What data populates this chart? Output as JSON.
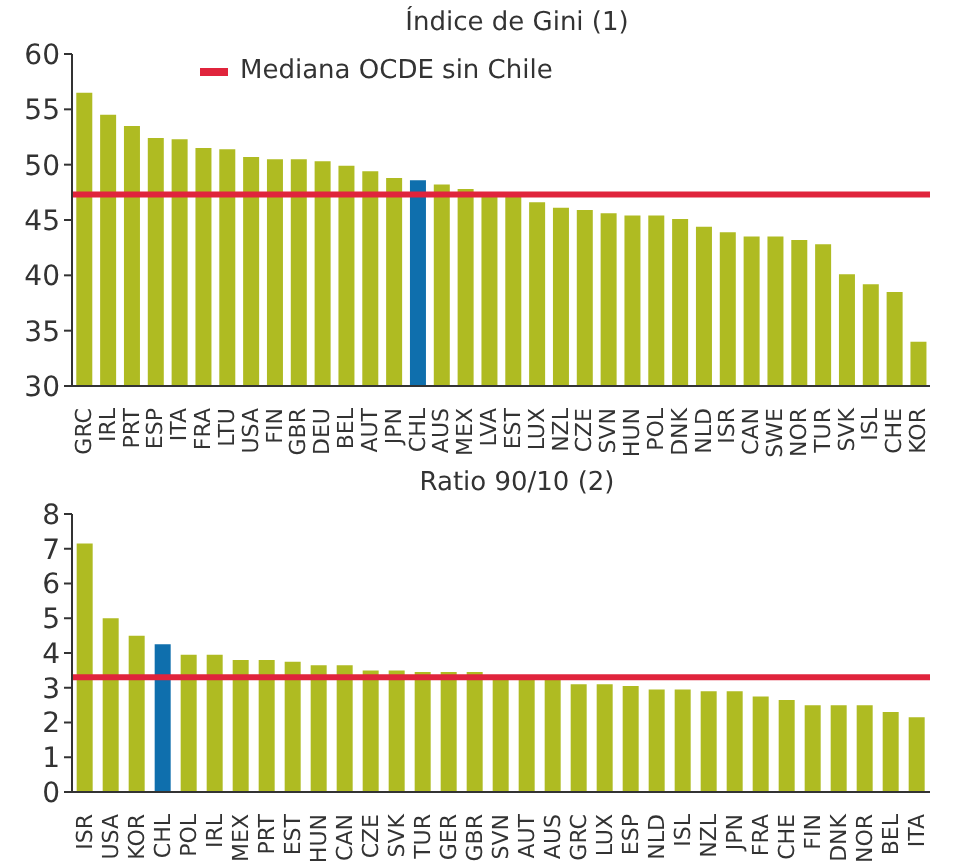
{
  "chart_data": [
    {
      "type": "bar",
      "title": "Índice de Gini (1)",
      "categories": [
        "GRC",
        "IRL",
        "PRT",
        "ESP",
        "ITA",
        "FRA",
        "LTU",
        "USA",
        "FIN",
        "GBR",
        "DEU",
        "BEL",
        "AUT",
        "JPN",
        "CHL",
        "AUS",
        "MEX",
        "LVA",
        "EST",
        "LUX",
        "NZL",
        "CZE",
        "SVN",
        "HUN",
        "POL",
        "DNK",
        "NLD",
        "ISR",
        "CAN",
        "SWE",
        "NOR",
        "TUR",
        "SVK",
        "ISL",
        "CHE",
        "KOR"
      ],
      "values": [
        56.5,
        54.5,
        53.5,
        52.4,
        52.3,
        51.5,
        51.4,
        50.7,
        50.5,
        50.5,
        50.3,
        49.9,
        49.4,
        48.8,
        48.6,
        48.2,
        47.8,
        47.2,
        47.2,
        46.6,
        46.1,
        45.9,
        45.6,
        45.4,
        45.4,
        45.1,
        44.4,
        43.9,
        43.5,
        43.5,
        43.2,
        42.8,
        40.1,
        39.2,
        38.5,
        34.0
      ],
      "colors": [
        "#afbb22",
        "#afbb22",
        "#afbb22",
        "#afbb22",
        "#afbb22",
        "#afbb22",
        "#afbb22",
        "#afbb22",
        "#afbb22",
        "#afbb22",
        "#afbb22",
        "#afbb22",
        "#afbb22",
        "#afbb22",
        "#0f6fad",
        "#afbb22",
        "#afbb22",
        "#afbb22",
        "#afbb22",
        "#afbb22",
        "#afbb22",
        "#afbb22",
        "#afbb22",
        "#afbb22",
        "#afbb22",
        "#afbb22",
        "#afbb22",
        "#afbb22",
        "#afbb22",
        "#afbb22",
        "#afbb22",
        "#afbb22",
        "#afbb22",
        "#afbb22",
        "#afbb22",
        "#afbb22"
      ],
      "ylim": [
        30,
        60
      ],
      "yticks": [
        30,
        35,
        40,
        45,
        50,
        55,
        60
      ],
      "grid": false,
      "legend": "top",
      "ref_lines": [
        {
          "axis": "y",
          "value": 47.3,
          "label": "Mediana OCDE sin Chile",
          "color": "#e0243c"
        }
      ]
    },
    {
      "type": "bar",
      "title": "Ratio 90/10 (2)",
      "categories": [
        "ISR",
        "USA",
        "KOR",
        "CHL",
        "POL",
        "IRL",
        "MEX",
        "PRT",
        "EST",
        "HUN",
        "CAN",
        "CZE",
        "SVK",
        "TUR",
        "GER",
        "GBR",
        "SVN",
        "AUT",
        "AUS",
        "GRC",
        "LUX",
        "ESP",
        "NLD",
        "ISL",
        "NZL",
        "JPN",
        "FRA",
        "CHE",
        "FIN",
        "DNK",
        "NOR",
        "BEL",
        "ITA"
      ],
      "values": [
        7.15,
        5.0,
        4.5,
        4.25,
        3.95,
        3.95,
        3.8,
        3.8,
        3.75,
        3.65,
        3.65,
        3.5,
        3.5,
        3.45,
        3.45,
        3.45,
        3.3,
        3.3,
        3.3,
        3.1,
        3.1,
        3.05,
        2.95,
        2.95,
        2.9,
        2.9,
        2.75,
        2.65,
        2.5,
        2.5,
        2.5,
        2.3,
        2.15
      ],
      "colors": [
        "#afbb22",
        "#afbb22",
        "#afbb22",
        "#0f6fad",
        "#afbb22",
        "#afbb22",
        "#afbb22",
        "#afbb22",
        "#afbb22",
        "#afbb22",
        "#afbb22",
        "#afbb22",
        "#afbb22",
        "#afbb22",
        "#afbb22",
        "#afbb22",
        "#afbb22",
        "#afbb22",
        "#afbb22",
        "#afbb22",
        "#afbb22",
        "#afbb22",
        "#afbb22",
        "#afbb22",
        "#afbb22",
        "#afbb22",
        "#afbb22",
        "#afbb22",
        "#afbb22",
        "#afbb22",
        "#afbb22",
        "#afbb22",
        "#afbb22"
      ],
      "ylim": [
        0,
        8
      ],
      "yticks": [
        0,
        1,
        2,
        3,
        4,
        5,
        6,
        7,
        8
      ],
      "grid": false,
      "ref_lines": [
        {
          "axis": "y",
          "value": 3.3,
          "color": "#e0243c"
        }
      ]
    }
  ]
}
